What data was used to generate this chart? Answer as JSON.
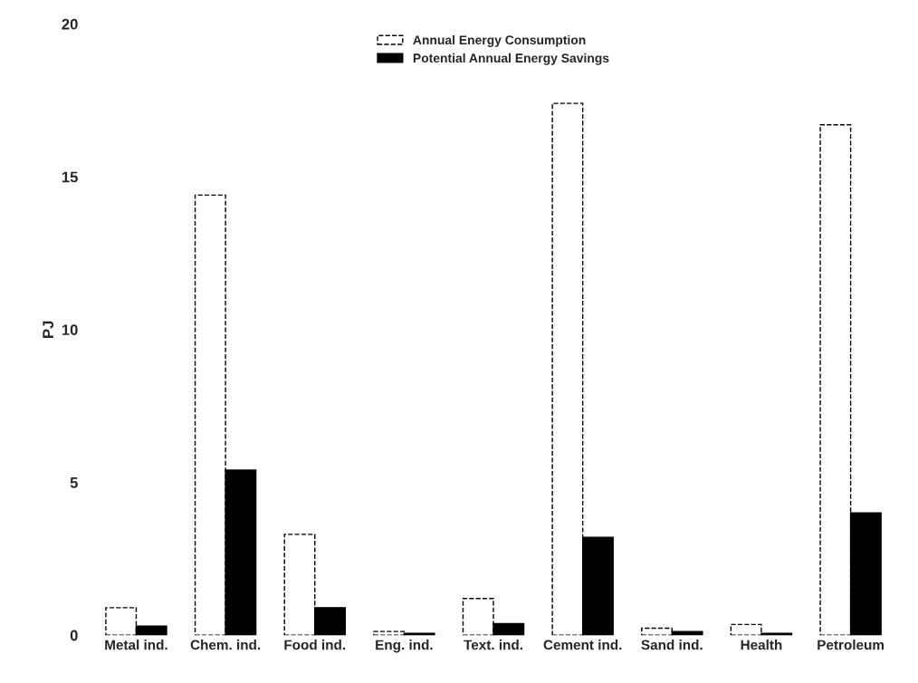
{
  "chart_data": {
    "type": "bar",
    "ylabel": "PJ",
    "categories": [
      "Metal ind.",
      "Chem. ind.",
      "Food ind.",
      "Eng. ind.",
      "Text. ind.",
      "Cement ind.",
      "Sand ind.",
      "Health",
      "Petroleum"
    ],
    "series": [
      {
        "name": "Annual Energy Consumption",
        "color": "#ffffff",
        "line_style": "dashed",
        "values": [
          0.9,
          14.4,
          3.3,
          0.12,
          1.2,
          17.4,
          0.23,
          0.35,
          16.7
        ]
      },
      {
        "name": "Potential Annual Energy Savings",
        "color": "#000000",
        "values": [
          0.3,
          5.4,
          0.9,
          0.06,
          0.38,
          3.2,
          0.12,
          0.06,
          4.0
        ]
      }
    ],
    "ylim": [
      0,
      20
    ],
    "yticks": [
      0,
      5,
      10,
      15,
      20
    ],
    "grid": false,
    "legend": "top"
  }
}
